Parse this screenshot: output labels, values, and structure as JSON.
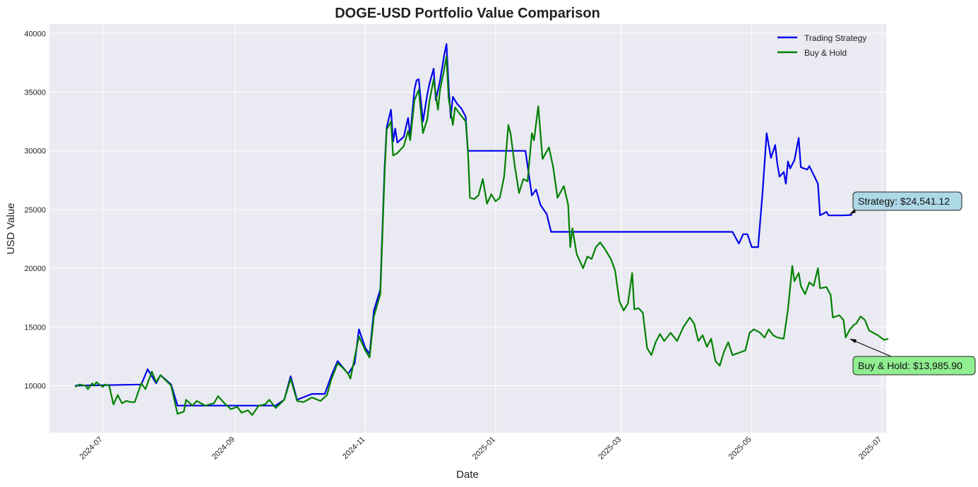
{
  "chart_data": {
    "type": "line",
    "title": "DOGE-USD Portfolio Value Comparison",
    "xlabel": "Date",
    "ylabel": "USD Value",
    "xlim": [
      "2024-06-06",
      "2025-07-03"
    ],
    "ylim": [
      6000,
      40800
    ],
    "yticks": [
      10000,
      15000,
      20000,
      25000,
      30000,
      35000,
      40000
    ],
    "xticks": [
      "2024-07",
      "2024-09",
      "2024-11",
      "2025-01",
      "2025-03",
      "2025-05",
      "2025-07"
    ],
    "grid": true,
    "legend_position": "top-right",
    "series": [
      {
        "name": "Trading Strategy",
        "color": "#0000ee",
        "points": [
          [
            "2024-06-18",
            10000
          ],
          [
            "2024-07-19",
            10100
          ],
          [
            "2024-07-22",
            11400
          ],
          [
            "2024-07-26",
            10200
          ],
          [
            "2024-07-28",
            10900
          ],
          [
            "2024-08-02",
            10100
          ],
          [
            "2024-08-05",
            8300
          ],
          [
            "2024-08-20",
            8300
          ],
          [
            "2024-09-10",
            8300
          ],
          [
            "2024-09-20",
            8300
          ],
          [
            "2024-09-24",
            8800
          ],
          [
            "2024-09-27",
            10800
          ],
          [
            "2024-09-30",
            8800
          ],
          [
            "2024-10-07",
            9300
          ],
          [
            "2024-10-13",
            9300
          ],
          [
            "2024-10-16",
            10800
          ],
          [
            "2024-10-19",
            12100
          ],
          [
            "2024-10-24",
            11000
          ],
          [
            "2024-10-27",
            11900
          ],
          [
            "2024-10-29",
            14800
          ],
          [
            "2024-11-01",
            13200
          ],
          [
            "2024-11-03",
            12700
          ],
          [
            "2024-11-05",
            16400
          ],
          [
            "2024-11-08",
            18200
          ],
          [
            "2024-11-10",
            28500
          ],
          [
            "2024-11-11",
            32000
          ],
          [
            "2024-11-13",
            33500
          ],
          [
            "2024-11-14",
            30800
          ],
          [
            "2024-11-15",
            31900
          ],
          [
            "2024-11-16",
            30700
          ],
          [
            "2024-11-19",
            31200
          ],
          [
            "2024-11-21",
            32800
          ],
          [
            "2024-11-22",
            31300
          ],
          [
            "2024-11-24",
            35200
          ],
          [
            "2024-11-25",
            36000
          ],
          [
            "2024-11-26",
            36100
          ],
          [
            "2024-11-28",
            32500
          ],
          [
            "2024-11-30",
            34800
          ],
          [
            "2024-12-01",
            35700
          ],
          [
            "2024-12-03",
            37000
          ],
          [
            "2024-12-04",
            34300
          ],
          [
            "2024-12-06",
            36000
          ],
          [
            "2024-12-08",
            38200
          ],
          [
            "2024-12-09",
            39100
          ],
          [
            "2024-12-10",
            35500
          ],
          [
            "2024-12-11",
            32800
          ],
          [
            "2024-12-12",
            34600
          ],
          [
            "2024-12-14",
            34000
          ],
          [
            "2024-12-16",
            33600
          ],
          [
            "2024-12-18",
            32900
          ],
          [
            "2024-12-19",
            30000
          ],
          [
            "2025-01-15",
            30000
          ],
          [
            "2025-01-18",
            26200
          ],
          [
            "2025-01-20",
            26700
          ],
          [
            "2025-01-22",
            25400
          ],
          [
            "2025-01-25",
            24600
          ],
          [
            "2025-01-27",
            23100
          ],
          [
            "2025-04-22",
            23100
          ],
          [
            "2025-04-25",
            22100
          ],
          [
            "2025-04-27",
            22900
          ],
          [
            "2025-04-29",
            22900
          ],
          [
            "2025-05-01",
            21800
          ],
          [
            "2025-05-04",
            21800
          ],
          [
            "2025-05-06",
            26300
          ],
          [
            "2025-05-08",
            31500
          ],
          [
            "2025-05-10",
            29400
          ],
          [
            "2025-05-12",
            30500
          ],
          [
            "2025-05-13",
            28900
          ],
          [
            "2025-05-14",
            27800
          ],
          [
            "2025-05-16",
            28200
          ],
          [
            "2025-05-17",
            27200
          ],
          [
            "2025-05-18",
            29100
          ],
          [
            "2025-05-19",
            28500
          ],
          [
            "2025-05-21",
            29200
          ],
          [
            "2025-05-23",
            31100
          ],
          [
            "2025-05-24",
            28600
          ],
          [
            "2025-05-27",
            28400
          ],
          [
            "2025-05-28",
            28700
          ],
          [
            "2025-06-01",
            27200
          ],
          [
            "2025-06-02",
            24500
          ],
          [
            "2025-06-05",
            24800
          ],
          [
            "2025-06-06",
            24500
          ],
          [
            "2025-06-13",
            24500
          ],
          [
            "2025-06-17",
            24541.12
          ]
        ]
      },
      {
        "name": "Buy & Hold",
        "color": "#008000",
        "points": [
          [
            "2024-06-18",
            9900
          ],
          [
            "2024-06-20",
            10100
          ],
          [
            "2024-06-23",
            10000
          ],
          [
            "2024-06-24",
            9700
          ],
          [
            "2024-06-26",
            10200
          ],
          [
            "2024-06-27",
            10000
          ],
          [
            "2024-06-28",
            10300
          ],
          [
            "2024-07-01",
            9900
          ],
          [
            "2024-07-02",
            10100
          ],
          [
            "2024-07-04",
            10000
          ],
          [
            "2024-07-06",
            8400
          ],
          [
            "2024-07-08",
            9200
          ],
          [
            "2024-07-10",
            8500
          ],
          [
            "2024-07-12",
            8700
          ],
          [
            "2024-07-14",
            8600
          ],
          [
            "2024-07-16",
            8600
          ],
          [
            "2024-07-19",
            10200
          ],
          [
            "2024-07-21",
            9700
          ],
          [
            "2024-07-24",
            11200
          ],
          [
            "2024-07-26",
            10300
          ],
          [
            "2024-07-28",
            10900
          ],
          [
            "2024-08-02",
            10000
          ],
          [
            "2024-08-05",
            7600
          ],
          [
            "2024-08-08",
            7800
          ],
          [
            "2024-08-09",
            8800
          ],
          [
            "2024-08-12",
            8300
          ],
          [
            "2024-08-14",
            8700
          ],
          [
            "2024-08-18",
            8300
          ],
          [
            "2024-08-22",
            8500
          ],
          [
            "2024-08-24",
            9100
          ],
          [
            "2024-08-27",
            8500
          ],
          [
            "2024-08-30",
            8000
          ],
          [
            "2024-09-02",
            8200
          ],
          [
            "2024-09-04",
            7700
          ],
          [
            "2024-09-07",
            7900
          ],
          [
            "2024-09-09",
            7500
          ],
          [
            "2024-09-12",
            8300
          ],
          [
            "2024-09-15",
            8400
          ],
          [
            "2024-09-17",
            8800
          ],
          [
            "2024-09-20",
            8100
          ],
          [
            "2024-09-24",
            8800
          ],
          [
            "2024-09-27",
            10600
          ],
          [
            "2024-09-30",
            8700
          ],
          [
            "2024-10-03",
            8600
          ],
          [
            "2024-10-07",
            9000
          ],
          [
            "2024-10-11",
            8700
          ],
          [
            "2024-10-14",
            9200
          ],
          [
            "2024-10-16",
            10500
          ],
          [
            "2024-10-19",
            11900
          ],
          [
            "2024-10-21",
            11600
          ],
          [
            "2024-10-24",
            11000
          ],
          [
            "2024-10-25",
            10600
          ],
          [
            "2024-10-29",
            14200
          ],
          [
            "2024-11-01",
            13000
          ],
          [
            "2024-11-03",
            12400
          ],
          [
            "2024-11-05",
            15900
          ],
          [
            "2024-11-08",
            17800
          ],
          [
            "2024-11-10",
            28000
          ],
          [
            "2024-11-11",
            31800
          ],
          [
            "2024-11-13",
            32500
          ],
          [
            "2024-11-14",
            29600
          ],
          [
            "2024-11-16",
            29800
          ],
          [
            "2024-11-19",
            30400
          ],
          [
            "2024-11-21",
            31700
          ],
          [
            "2024-11-22",
            30900
          ],
          [
            "2024-11-24",
            34300
          ],
          [
            "2024-11-26",
            35200
          ],
          [
            "2024-11-28",
            31500
          ],
          [
            "2024-11-30",
            32700
          ],
          [
            "2024-12-01",
            34200
          ],
          [
            "2024-12-03",
            36100
          ],
          [
            "2024-12-05",
            33500
          ],
          [
            "2024-12-06",
            35200
          ],
          [
            "2024-12-08",
            37000
          ],
          [
            "2024-12-09",
            38000
          ],
          [
            "2024-12-10",
            34500
          ],
          [
            "2024-12-12",
            32200
          ],
          [
            "2024-12-13",
            33700
          ],
          [
            "2024-12-15",
            33200
          ],
          [
            "2024-12-18",
            32500
          ],
          [
            "2024-12-19",
            30200
          ],
          [
            "2024-12-20",
            26000
          ],
          [
            "2024-12-22",
            25900
          ],
          [
            "2024-12-24",
            26200
          ],
          [
            "2024-12-26",
            27600
          ],
          [
            "2024-12-28",
            25500
          ],
          [
            "2024-12-30",
            26300
          ],
          [
            "2025-01-01",
            25700
          ],
          [
            "2025-01-03",
            26000
          ],
          [
            "2025-01-05",
            27800
          ],
          [
            "2025-01-07",
            32200
          ],
          [
            "2025-01-08",
            31500
          ],
          [
            "2025-01-10",
            28700
          ],
          [
            "2025-01-12",
            26400
          ],
          [
            "2025-01-14",
            27600
          ],
          [
            "2025-01-16",
            27400
          ],
          [
            "2025-01-18",
            31500
          ],
          [
            "2025-01-19",
            30900
          ],
          [
            "2025-01-21",
            33800
          ],
          [
            "2025-01-23",
            29300
          ],
          [
            "2025-01-26",
            30300
          ],
          [
            "2025-01-28",
            28600
          ],
          [
            "2025-01-30",
            26000
          ],
          [
            "2025-02-02",
            27000
          ],
          [
            "2025-02-04",
            25400
          ],
          [
            "2025-02-05",
            21800
          ],
          [
            "2025-02-06",
            23400
          ],
          [
            "2025-02-08",
            21200
          ],
          [
            "2025-02-11",
            20000
          ],
          [
            "2025-02-13",
            21000
          ],
          [
            "2025-02-15",
            20800
          ],
          [
            "2025-02-17",
            21800
          ],
          [
            "2025-02-19",
            22200
          ],
          [
            "2025-02-21",
            21700
          ],
          [
            "2025-02-24",
            20800
          ],
          [
            "2025-02-26",
            19800
          ],
          [
            "2025-02-28",
            17200
          ],
          [
            "2025-03-02",
            16400
          ],
          [
            "2025-03-04",
            17000
          ],
          [
            "2025-03-06",
            19600
          ],
          [
            "2025-03-07",
            16500
          ],
          [
            "2025-03-09",
            16600
          ],
          [
            "2025-03-11",
            16200
          ],
          [
            "2025-03-13",
            13200
          ],
          [
            "2025-03-15",
            12600
          ],
          [
            "2025-03-17",
            13700
          ],
          [
            "2025-03-19",
            14400
          ],
          [
            "2025-03-21",
            13800
          ],
          [
            "2025-03-24",
            14500
          ],
          [
            "2025-03-27",
            13800
          ],
          [
            "2025-03-30",
            15000
          ],
          [
            "2025-04-02",
            15800
          ],
          [
            "2025-04-04",
            15300
          ],
          [
            "2025-04-06",
            13800
          ],
          [
            "2025-04-08",
            14300
          ],
          [
            "2025-04-10",
            13300
          ],
          [
            "2025-04-12",
            14000
          ],
          [
            "2025-04-14",
            12100
          ],
          [
            "2025-04-16",
            11700
          ],
          [
            "2025-04-18",
            12900
          ],
          [
            "2025-04-20",
            13700
          ],
          [
            "2025-04-22",
            12600
          ],
          [
            "2025-04-25",
            12800
          ],
          [
            "2025-04-28",
            13000
          ],
          [
            "2025-04-30",
            14500
          ],
          [
            "2025-05-02",
            14800
          ],
          [
            "2025-05-05",
            14500
          ],
          [
            "2025-05-07",
            14100
          ],
          [
            "2025-05-09",
            14800
          ],
          [
            "2025-05-11",
            14300
          ],
          [
            "2025-05-13",
            14100
          ],
          [
            "2025-05-16",
            14000
          ],
          [
            "2025-05-18",
            16500
          ],
          [
            "2025-05-20",
            20200
          ],
          [
            "2025-05-21",
            18900
          ],
          [
            "2025-05-23",
            19600
          ],
          [
            "2025-05-24",
            18500
          ],
          [
            "2025-05-26",
            17800
          ],
          [
            "2025-05-28",
            18800
          ],
          [
            "2025-05-30",
            18500
          ],
          [
            "2025-06-01",
            20000
          ],
          [
            "2025-06-02",
            18300
          ],
          [
            "2025-06-05",
            18400
          ],
          [
            "2025-06-07",
            17700
          ],
          [
            "2025-06-08",
            15800
          ],
          [
            "2025-06-11",
            16000
          ],
          [
            "2025-06-13",
            15600
          ],
          [
            "2025-06-14",
            14100
          ],
          [
            "2025-06-16",
            14800
          ],
          [
            "2025-06-18",
            15200
          ],
          [
            "2025-06-19",
            15300
          ],
          [
            "2025-06-21",
            15900
          ],
          [
            "2025-06-23",
            15600
          ],
          [
            "2025-06-25",
            14700
          ],
          [
            "2025-06-29",
            14300
          ],
          [
            "2025-07-02",
            13900
          ],
          [
            "2025-07-04",
            13985.9
          ]
        ]
      }
    ],
    "annotations": [
      {
        "series": "Trading Strategy",
        "text": "Strategy: $24,541.12",
        "fill": "#add8e6"
      },
      {
        "series": "Buy & Hold",
        "text": "Buy & Hold: $13,985.90",
        "fill": "#90ee90"
      }
    ]
  }
}
